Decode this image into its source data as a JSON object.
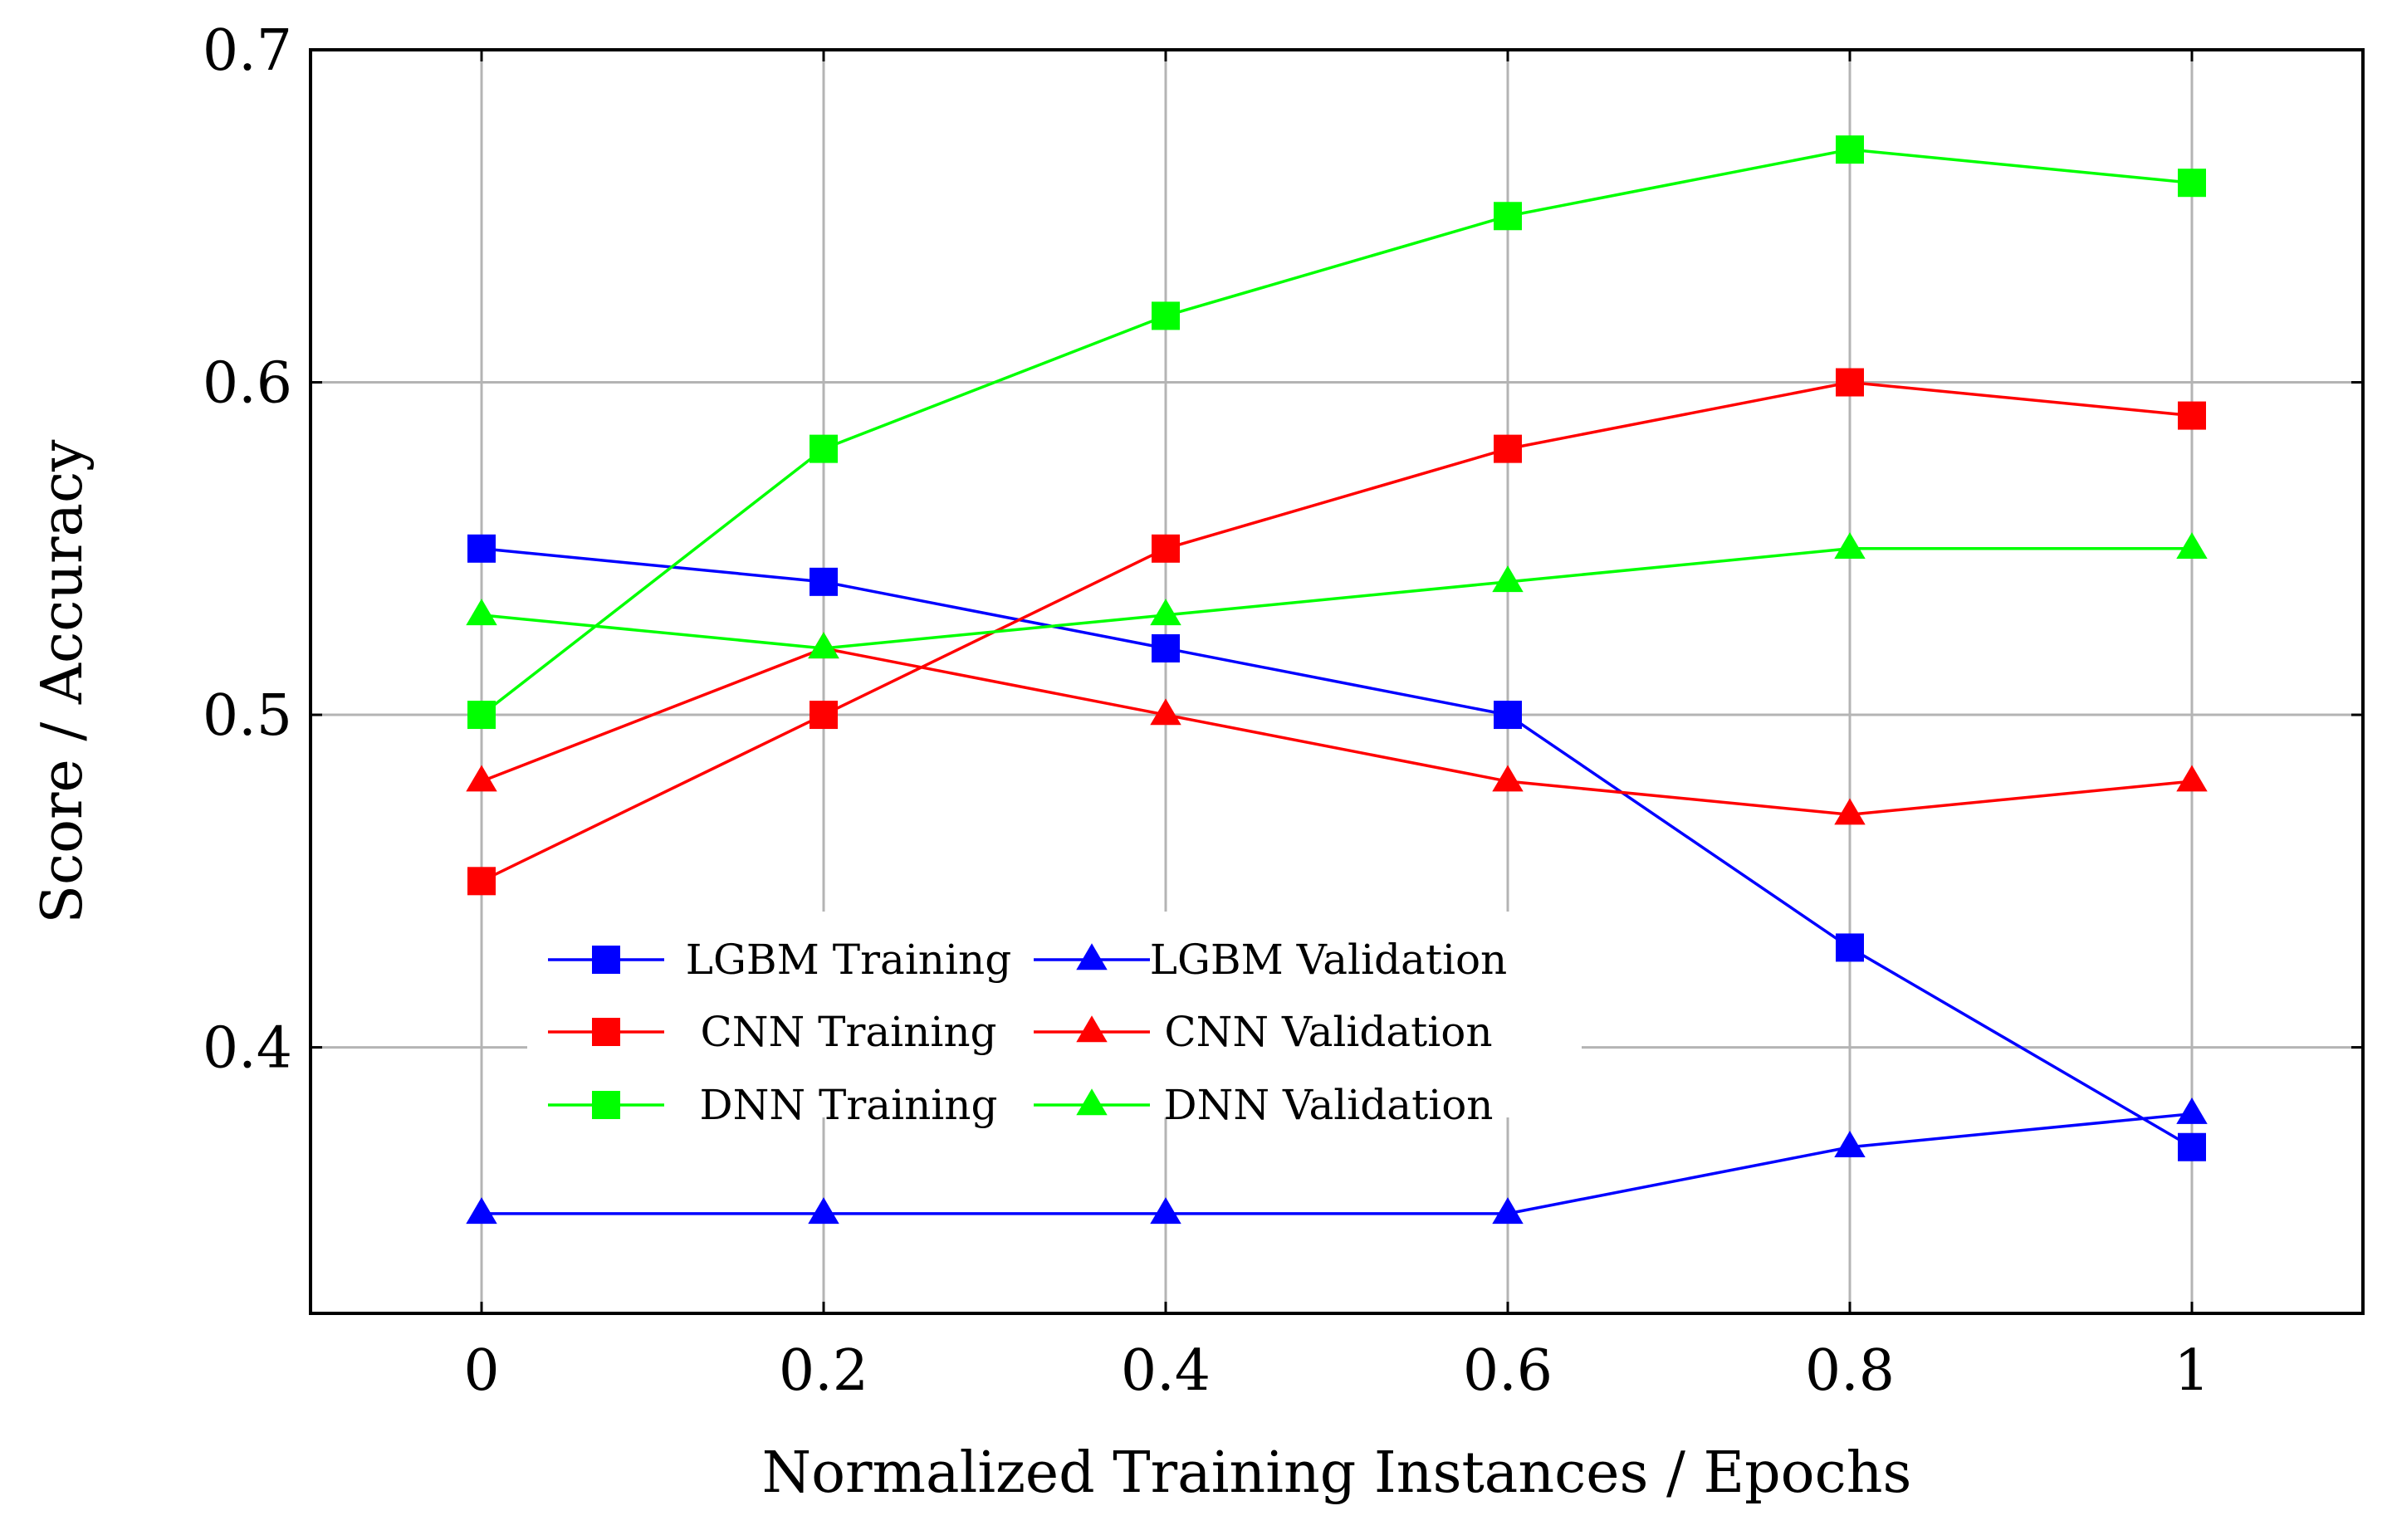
{
  "chart_data": {
    "type": "line",
    "title": "",
    "xlabel": "Normalized Training Instances / Epochs",
    "ylabel": "Score / Accuracy",
    "xlim": [
      -0.1,
      1.1
    ],
    "ylim": [
      0.32,
      0.7
    ],
    "grid": true,
    "legend_position": "lower-left",
    "x": [
      0,
      0.2,
      0.4,
      0.6,
      0.8,
      1
    ],
    "x_tick_labels": [
      "0",
      "0.2",
      "0.4",
      "0.6",
      "0.8",
      "1"
    ],
    "y_ticks": [
      0.4,
      0.5,
      0.6,
      0.7
    ],
    "y_tick_labels": [
      "0.4",
      "0.5",
      "0.6",
      "0.7"
    ],
    "series": [
      {
        "name": "LGBM Training",
        "color": "#0000ff",
        "marker": "square",
        "values": [
          0.55,
          0.54,
          0.52,
          0.5,
          0.43,
          0.37
        ]
      },
      {
        "name": "LGBM Validation",
        "color": "#0000ff",
        "marker": "triangle",
        "values": [
          0.35,
          0.35,
          0.35,
          0.35,
          0.37,
          0.38
        ]
      },
      {
        "name": "CNN Training",
        "color": "#ff0000",
        "marker": "square",
        "values": [
          0.45,
          0.5,
          0.55,
          0.58,
          0.6,
          0.59
        ]
      },
      {
        "name": "CNN Validation",
        "color": "#ff0000",
        "marker": "triangle",
        "values": [
          0.48,
          0.52,
          0.5,
          0.48,
          0.47,
          0.48
        ]
      },
      {
        "name": "DNN Training",
        "color": "#00ff00",
        "marker": "square",
        "values": [
          0.5,
          0.58,
          0.62,
          0.65,
          0.67,
          0.66
        ]
      },
      {
        "name": "DNN Validation",
        "color": "#00ff00",
        "marker": "triangle",
        "values": [
          0.53,
          0.52,
          0.53,
          0.54,
          0.55,
          0.55
        ]
      }
    ]
  }
}
